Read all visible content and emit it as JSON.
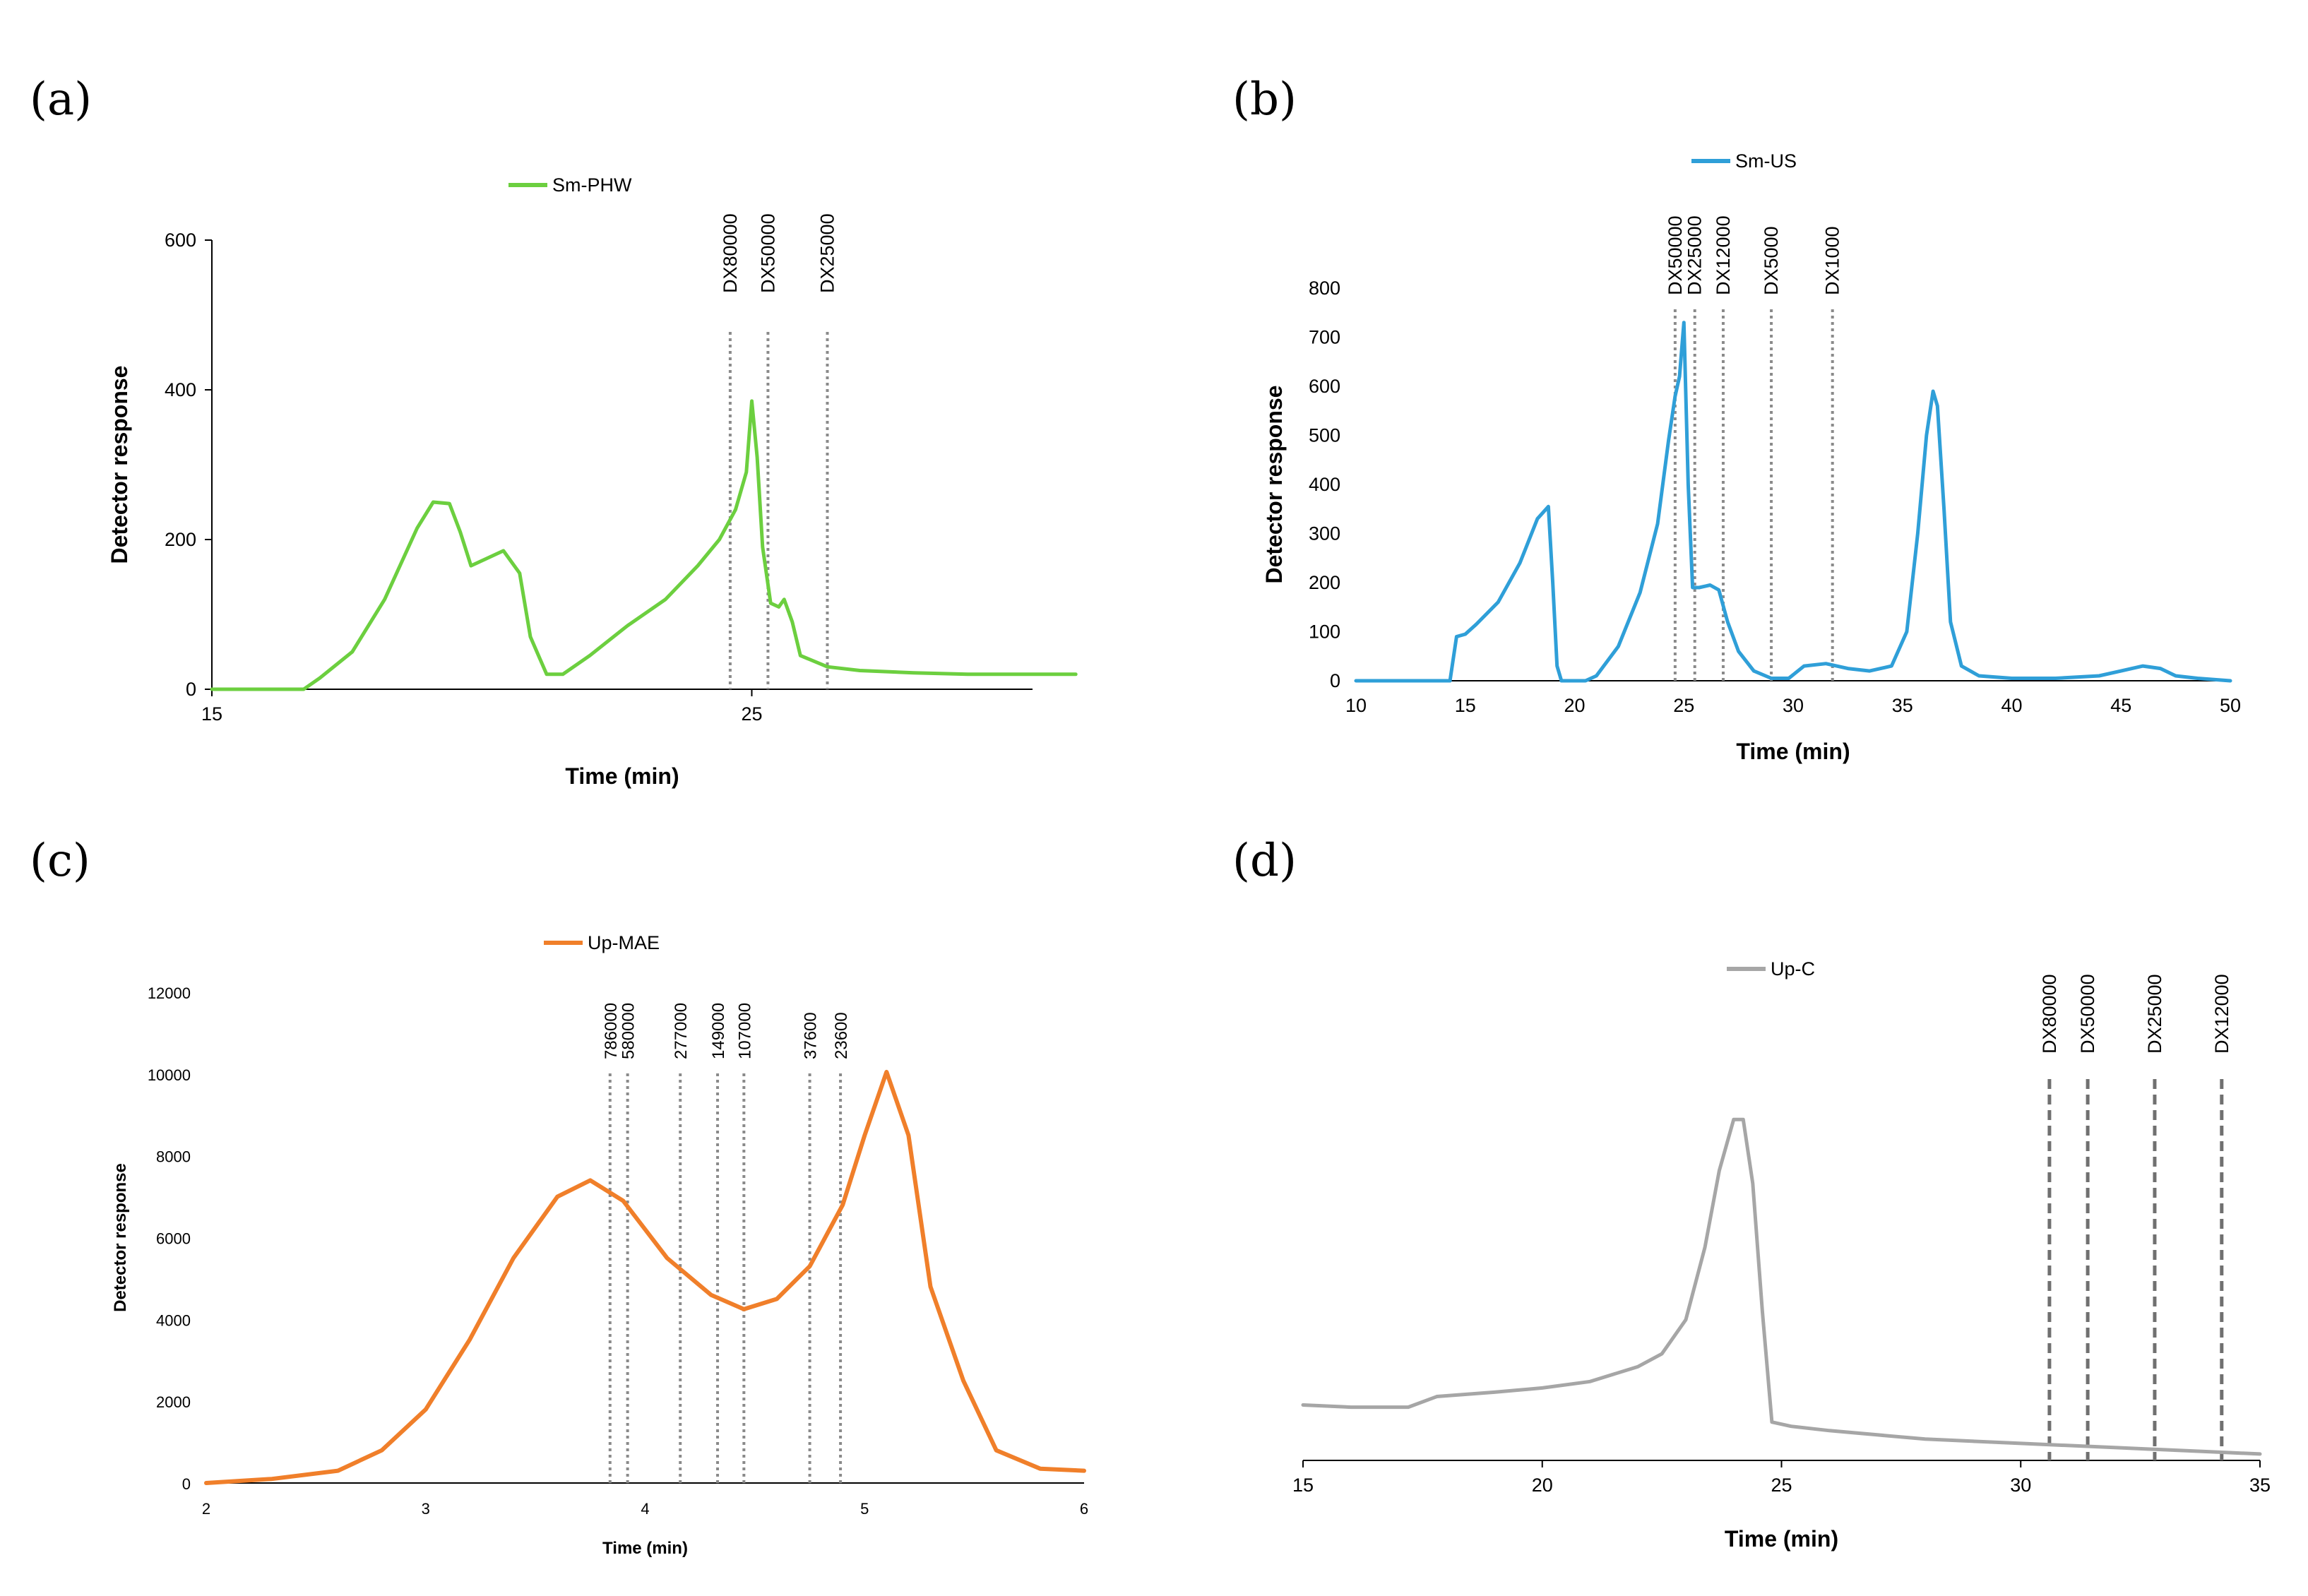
{
  "chart_data": [
    {
      "panel": "(a)",
      "type": "line",
      "series": [
        {
          "name": "Sm-PHW",
          "color": "#6ccf3f",
          "x": [
            15,
            16.7,
            17.0,
            17.6,
            18.2,
            18.8,
            19.1,
            19.4,
            19.6,
            19.8,
            20.1,
            20.4,
            20.7,
            20.9,
            21.2,
            21.5,
            22.0,
            22.7,
            23.4,
            24.0,
            24.4,
            24.7,
            24.9,
            25.0,
            25.1,
            25.2,
            25.35,
            25.5,
            25.6,
            25.75,
            25.9,
            26.4,
            27.0,
            28.0,
            29.0,
            30.0,
            31.0
          ],
          "values": [
            0,
            0,
            15,
            50,
            120,
            215,
            250,
            248,
            210,
            165,
            175,
            185,
            155,
            70,
            20,
            20,
            45,
            85,
            120,
            165,
            200,
            240,
            290,
            385,
            310,
            190,
            115,
            110,
            120,
            90,
            45,
            30,
            25,
            22,
            20,
            20,
            20
          ]
        }
      ],
      "xlabel": "Time (min)",
      "ylabel": "Detector response",
      "xticks": [
        15,
        25
      ],
      "yticks": [
        0,
        200,
        400,
        600
      ],
      "xlim": [
        15,
        30.2
      ],
      "ylim": [
        0,
        600
      ],
      "markers": [
        {
          "label": "DX80000",
          "x": 24.6
        },
        {
          "label": "DX50000",
          "x": 25.3
        },
        {
          "label": "DX25000",
          "x": 26.4
        }
      ]
    },
    {
      "panel": "(b)",
      "type": "line",
      "series": [
        {
          "name": "Sm-US",
          "color": "#2f9fd8",
          "x": [
            10,
            14.3,
            14.6,
            15.0,
            15.5,
            16.5,
            17.5,
            18.3,
            18.8,
            19.0,
            19.2,
            19.4,
            20.5,
            21.0,
            22.0,
            23.0,
            23.8,
            24.3,
            24.6,
            24.8,
            25.0,
            25.2,
            25.4,
            25.7,
            26.2,
            26.6,
            27.0,
            27.5,
            28.2,
            29.0,
            29.8,
            30.5,
            31.5,
            32.5,
            33.5,
            34.5,
            35.2,
            35.7,
            36.1,
            36.4,
            36.6,
            36.9,
            37.2,
            37.7,
            38.5,
            40.0,
            42.0,
            44.0,
            45.0,
            46.0,
            46.8,
            47.5,
            48.5,
            50.0
          ],
          "values": [
            0,
            0,
            90,
            95,
            115,
            160,
            240,
            330,
            355,
            200,
            30,
            0,
            0,
            10,
            70,
            180,
            320,
            490,
            580,
            620,
            730,
            400,
            190,
            190,
            195,
            185,
            120,
            60,
            20,
            5,
            5,
            30,
            35,
            25,
            20,
            30,
            100,
            300,
            500,
            590,
            560,
            350,
            120,
            30,
            10,
            5,
            5,
            10,
            20,
            30,
            25,
            10,
            5,
            0
          ]
        }
      ],
      "xlabel": "Time (min)",
      "ylabel": "Detector response",
      "xticks": [
        10,
        15,
        20,
        25,
        30,
        35,
        40,
        45,
        50
      ],
      "yticks": [
        0,
        100,
        200,
        300,
        400,
        500,
        600,
        700,
        800
      ],
      "xlim": [
        10,
        50
      ],
      "ylim": [
        0,
        800
      ],
      "markers": [
        {
          "label": "DX50000",
          "x": 24.6
        },
        {
          "label": "DX25000",
          "x": 25.5
        },
        {
          "label": "DX12000",
          "x": 26.8
        },
        {
          "label": "DX5000",
          "x": 29.0
        },
        {
          "label": "DX1000",
          "x": 31.8
        }
      ]
    },
    {
      "panel": "(c)",
      "type": "line",
      "series": [
        {
          "name": "Up-MAE",
          "color": "#f07f2a",
          "x": [
            2.0,
            2.3,
            2.6,
            2.8,
            3.0,
            3.2,
            3.4,
            3.6,
            3.75,
            3.9,
            4.1,
            4.3,
            4.45,
            4.6,
            4.75,
            4.9,
            5.0,
            5.1,
            5.2,
            5.3,
            5.45,
            5.6,
            5.8,
            6.0
          ],
          "values": [
            0,
            100,
            300,
            800,
            1800,
            3500,
            5500,
            7000,
            7400,
            6900,
            5500,
            4600,
            4250,
            4500,
            5300,
            6800,
            8500,
            10050,
            8500,
            4800,
            2500,
            800,
            350,
            300
          ]
        }
      ],
      "xlabel": "Time (min)",
      "ylabel": "Detector response",
      "xticks": [
        2,
        3,
        4,
        5,
        6
      ],
      "yticks": [
        0,
        2000,
        4000,
        6000,
        8000,
        10000,
        12000
      ],
      "xlim": [
        2,
        6
      ],
      "ylim": [
        0,
        12000
      ],
      "markers": [
        {
          "label": "786000",
          "x": 3.84
        },
        {
          "label": "580000",
          "x": 3.92
        },
        {
          "label": "277000",
          "x": 4.16
        },
        {
          "label": "149000",
          "x": 4.33
        },
        {
          "label": "107000",
          "x": 4.45
        },
        {
          "label": "37600",
          "x": 4.75
        },
        {
          "label": "23600",
          "x": 4.89
        }
      ]
    },
    {
      "panel": "(d)",
      "type": "line",
      "series": [
        {
          "name": "Up-C",
          "color": "#a6a6a6",
          "x": [
            15,
            16,
            17.2,
            17.8,
            19,
            20,
            21,
            22,
            22.5,
            23,
            23.4,
            23.7,
            24.0,
            24.2,
            24.4,
            24.6,
            24.8,
            25.2,
            26,
            27,
            28,
            30,
            32,
            34,
            35
          ],
          "values": [
            1300,
            1250,
            1250,
            1500,
            1600,
            1700,
            1850,
            2200,
            2500,
            3300,
            5000,
            6800,
            8000,
            8000,
            6500,
            3500,
            900,
            800,
            700,
            600,
            500,
            400,
            300,
            200,
            150
          ]
        }
      ],
      "xlabel": "Time (min)",
      "xticks": [
        15,
        20,
        25,
        30,
        35
      ],
      "xlim": [
        15,
        35
      ],
      "ylim": [
        0,
        8500
      ],
      "markers": [
        {
          "label": "DX80000",
          "x": 30.6
        },
        {
          "label": "DX50000",
          "x": 31.4
        },
        {
          "label": "DX25000",
          "x": 32.8
        },
        {
          "label": "DX12000",
          "x": 34.2
        }
      ]
    }
  ]
}
